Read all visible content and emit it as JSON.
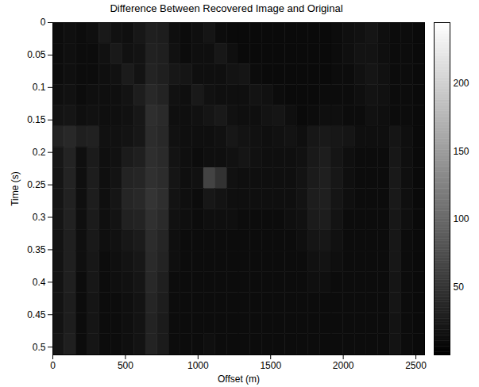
{
  "chart_data": {
    "type": "heatmap",
    "title": "Difference Between Recovered Image and Original",
    "x_label": "Offset (m)",
    "y_label": "Time (s)",
    "xlim": [
      0,
      2560
    ],
    "ylim": [
      0,
      0.512
    ],
    "xticks": [
      0,
      500,
      1000,
      1500,
      2000,
      2500
    ],
    "yticks": [
      0,
      0.05,
      0.1,
      0.15,
      0.2,
      0.25,
      0.3,
      0.35,
      0.4,
      0.45,
      0.5
    ],
    "x_bins": [
      0,
      80,
      160,
      240,
      320,
      400,
      480,
      560,
      640,
      720,
      800,
      880,
      960,
      1040,
      1120,
      1200,
      1280,
      1360,
      1440,
      1520,
      1600,
      1680,
      1760,
      1840,
      1920,
      2000,
      2080,
      2160,
      2240,
      2320,
      2400,
      2480,
      2560
    ],
    "y_bins": [
      0,
      0.032,
      0.064,
      0.096,
      0.128,
      0.16,
      0.192,
      0.224,
      0.256,
      0.288,
      0.32,
      0.352,
      0.384,
      0.416,
      0.448,
      0.48,
      0.512
    ],
    "cells": [
      [
        12,
        14,
        12,
        14,
        24,
        16,
        14,
        22,
        30,
        28,
        14,
        12,
        14,
        20,
        12,
        10,
        10,
        10,
        10,
        10,
        10,
        10,
        10,
        10,
        12,
        14,
        16,
        20,
        14,
        12,
        12,
        10
      ],
      [
        12,
        14,
        12,
        12,
        16,
        24,
        16,
        18,
        32,
        30,
        16,
        12,
        14,
        14,
        22,
        14,
        10,
        10,
        10,
        10,
        10,
        10,
        10,
        10,
        12,
        14,
        18,
        18,
        14,
        12,
        12,
        10
      ],
      [
        12,
        14,
        12,
        12,
        14,
        16,
        26,
        18,
        34,
        30,
        22,
        20,
        14,
        14,
        14,
        18,
        20,
        12,
        10,
        10,
        10,
        10,
        10,
        10,
        12,
        12,
        16,
        20,
        16,
        12,
        12,
        10
      ],
      [
        14,
        16,
        12,
        14,
        14,
        14,
        18,
        28,
        38,
        34,
        16,
        14,
        24,
        16,
        14,
        14,
        14,
        18,
        16,
        12,
        10,
        10,
        10,
        12,
        12,
        12,
        14,
        18,
        16,
        12,
        12,
        10
      ],
      [
        18,
        20,
        14,
        16,
        14,
        14,
        16,
        22,
        44,
        40,
        14,
        14,
        16,
        20,
        24,
        16,
        14,
        14,
        18,
        20,
        14,
        10,
        12,
        14,
        14,
        12,
        12,
        16,
        14,
        12,
        12,
        10
      ],
      [
        34,
        38,
        30,
        32,
        16,
        16,
        18,
        22,
        42,
        38,
        16,
        14,
        14,
        14,
        16,
        22,
        18,
        16,
        14,
        16,
        18,
        14,
        22,
        24,
        22,
        20,
        14,
        14,
        14,
        20,
        14,
        10
      ],
      [
        22,
        34,
        14,
        26,
        14,
        16,
        26,
        30,
        44,
        40,
        18,
        14,
        12,
        14,
        14,
        16,
        20,
        16,
        14,
        14,
        14,
        16,
        24,
        28,
        20,
        14,
        12,
        12,
        12,
        22,
        14,
        10
      ],
      [
        20,
        34,
        14,
        28,
        14,
        18,
        34,
        36,
        46,
        42,
        20,
        14,
        16,
        64,
        48,
        16,
        14,
        14,
        14,
        14,
        14,
        18,
        26,
        30,
        22,
        14,
        12,
        12,
        12,
        24,
        14,
        10
      ],
      [
        20,
        32,
        14,
        28,
        14,
        20,
        36,
        38,
        50,
        44,
        18,
        14,
        12,
        22,
        18,
        14,
        14,
        14,
        14,
        14,
        14,
        18,
        28,
        30,
        20,
        14,
        12,
        12,
        12,
        24,
        14,
        10
      ],
      [
        20,
        32,
        14,
        26,
        14,
        18,
        32,
        34,
        46,
        40,
        16,
        14,
        12,
        14,
        14,
        14,
        12,
        12,
        12,
        12,
        14,
        16,
        26,
        28,
        18,
        12,
        12,
        12,
        12,
        22,
        14,
        10
      ],
      [
        18,
        30,
        14,
        24,
        14,
        16,
        22,
        26,
        42,
        36,
        14,
        12,
        12,
        12,
        12,
        12,
        12,
        12,
        12,
        12,
        12,
        14,
        20,
        22,
        16,
        12,
        12,
        12,
        12,
        22,
        12,
        10
      ],
      [
        18,
        30,
        14,
        22,
        12,
        14,
        18,
        22,
        40,
        34,
        14,
        12,
        12,
        12,
        12,
        12,
        12,
        12,
        12,
        12,
        12,
        12,
        16,
        18,
        14,
        12,
        12,
        12,
        12,
        22,
        12,
        10
      ],
      [
        18,
        30,
        12,
        22,
        12,
        14,
        16,
        20,
        38,
        30,
        12,
        12,
        12,
        12,
        12,
        12,
        12,
        12,
        12,
        12,
        12,
        12,
        14,
        14,
        12,
        12,
        12,
        12,
        12,
        20,
        12,
        10
      ],
      [
        18,
        28,
        12,
        20,
        12,
        12,
        14,
        18,
        36,
        28,
        12,
        12,
        12,
        12,
        12,
        12,
        12,
        12,
        12,
        12,
        12,
        12,
        12,
        12,
        12,
        12,
        12,
        12,
        12,
        20,
        12,
        10
      ],
      [
        18,
        28,
        12,
        20,
        12,
        12,
        14,
        18,
        34,
        26,
        12,
        12,
        12,
        12,
        12,
        12,
        12,
        12,
        12,
        12,
        12,
        12,
        12,
        12,
        12,
        12,
        12,
        12,
        12,
        18,
        12,
        10
      ],
      [
        20,
        30,
        12,
        20,
        12,
        12,
        14,
        18,
        34,
        26,
        12,
        12,
        12,
        14,
        12,
        12,
        12,
        12,
        12,
        12,
        12,
        12,
        12,
        12,
        12,
        12,
        12,
        12,
        12,
        18,
        12,
        10
      ]
    ],
    "color_range": [
      0,
      245
    ],
    "color_ticks": [
      50,
      100,
      150,
      200
    ]
  }
}
